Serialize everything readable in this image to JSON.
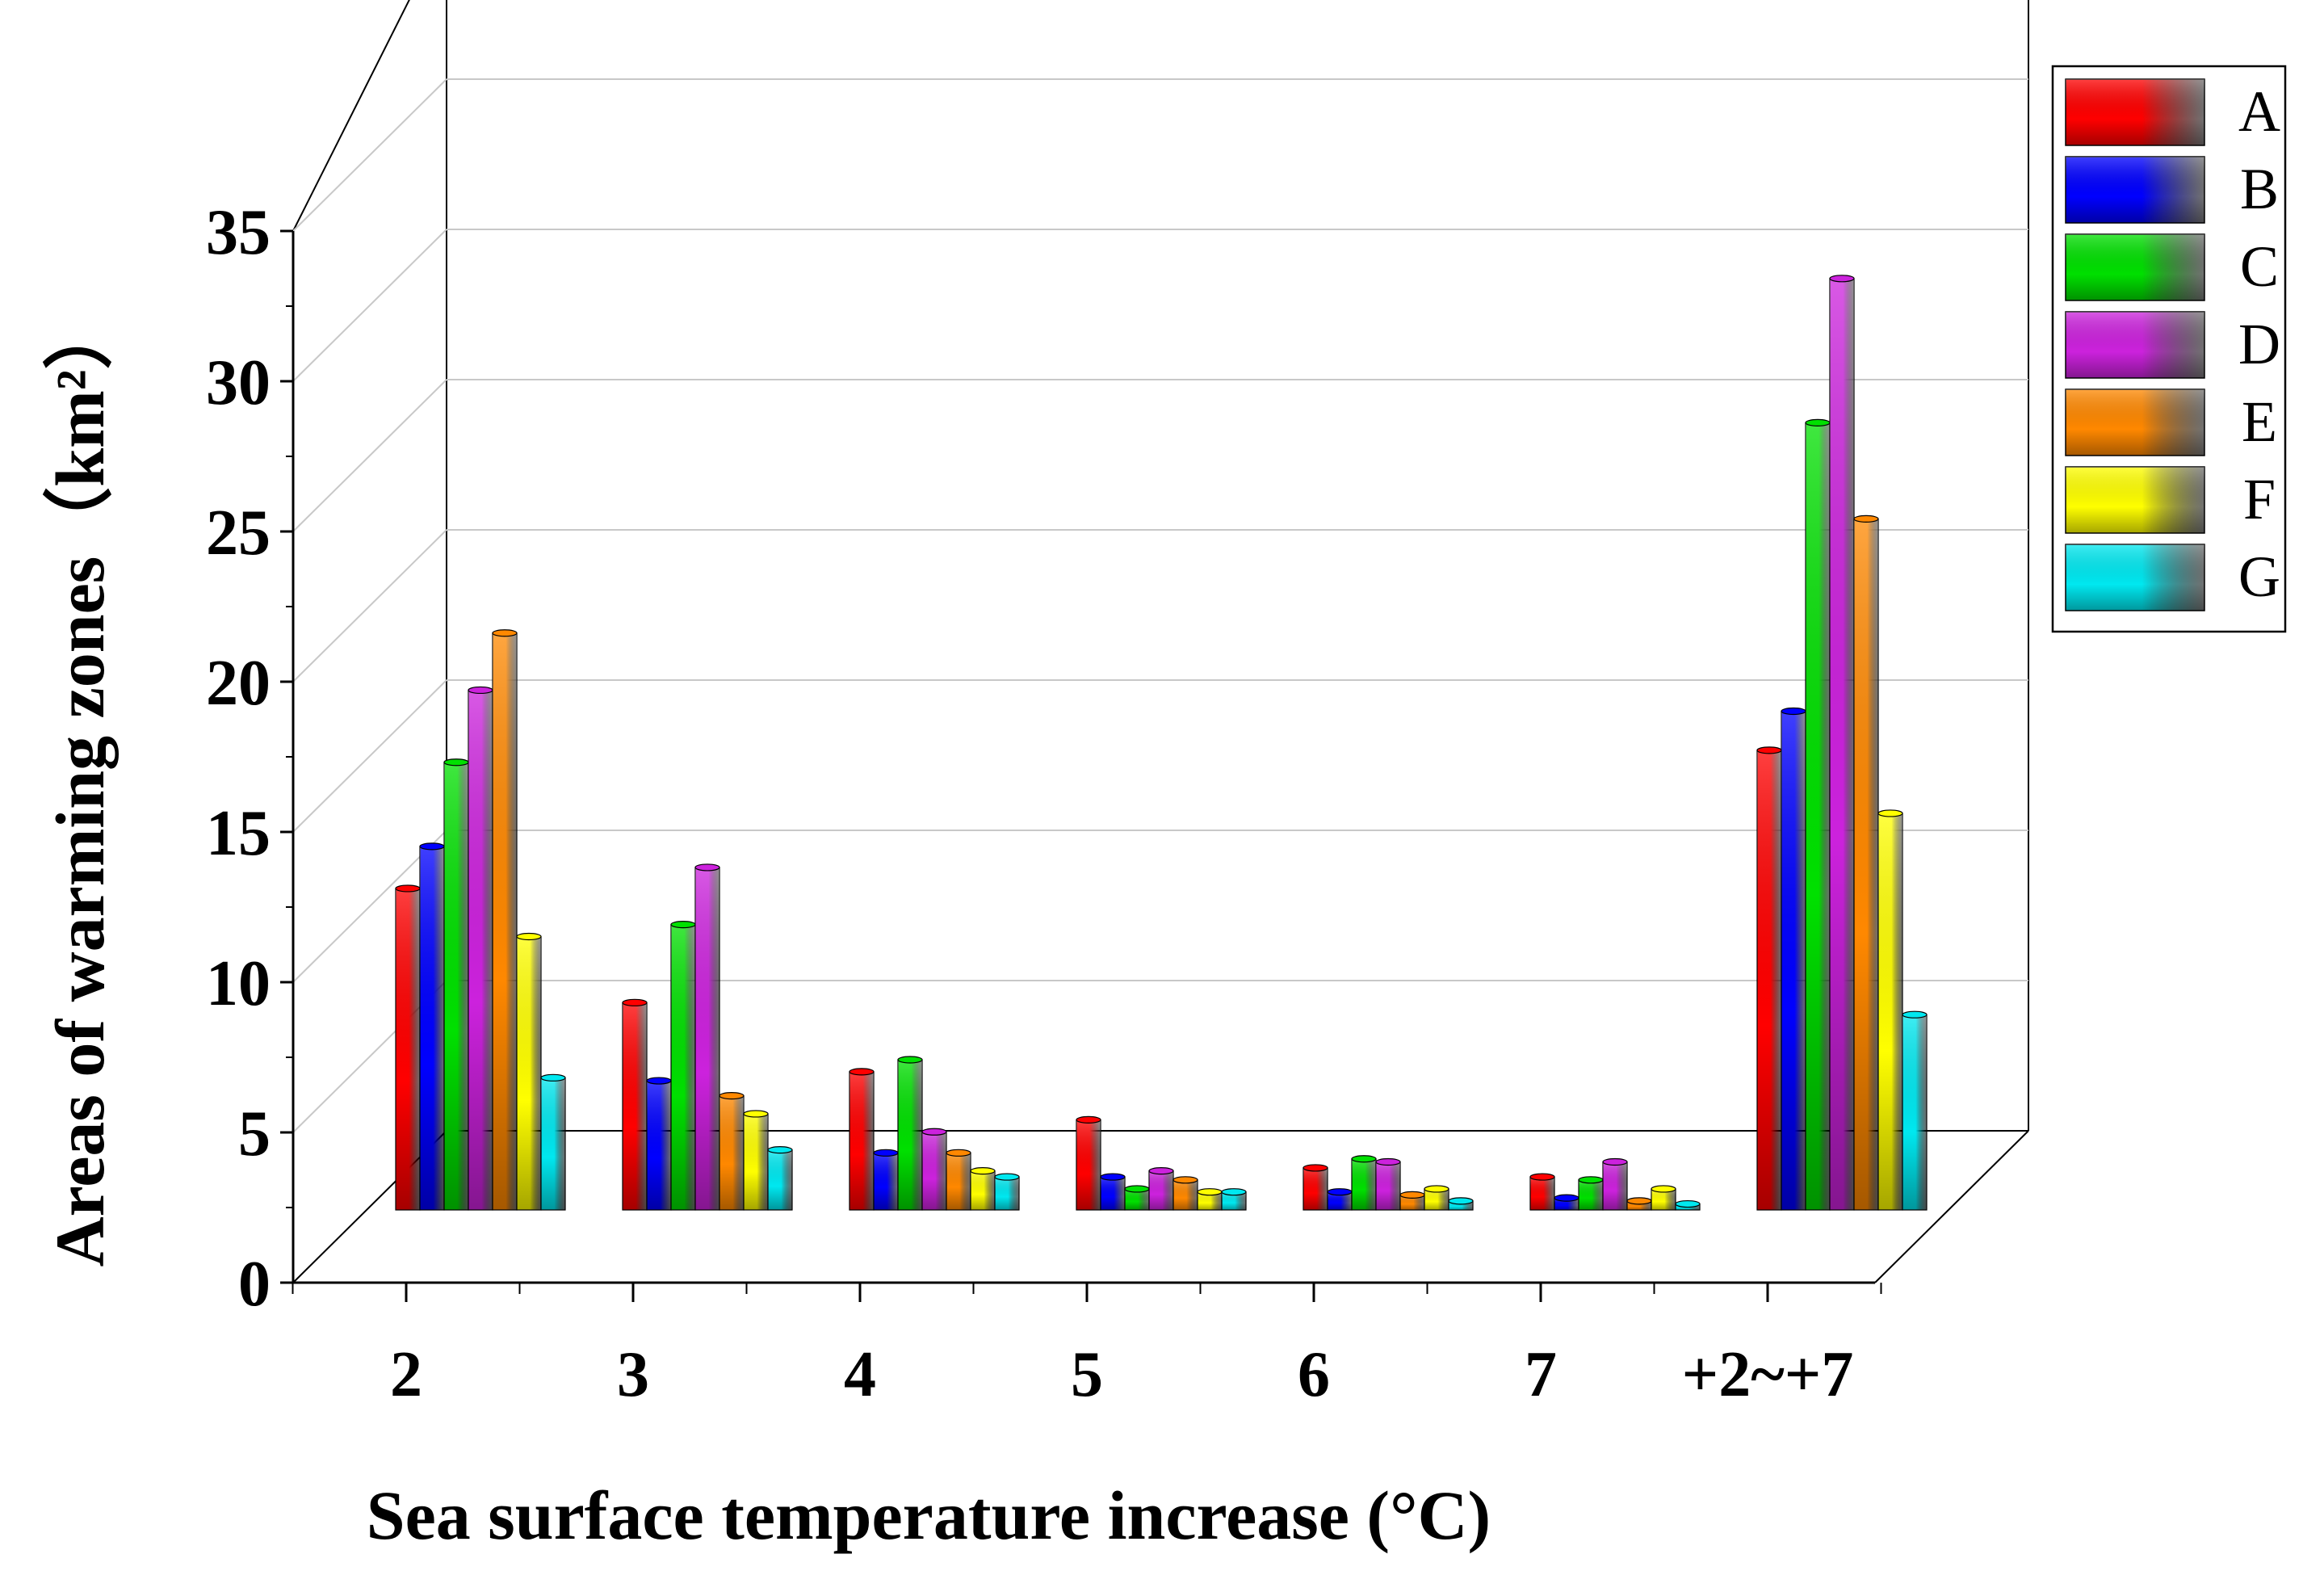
{
  "chart_data": {
    "type": "bar",
    "style": "3d-grouped",
    "categories": [
      "2",
      "3",
      "4",
      "5",
      "6",
      "7",
      "+2~+7"
    ],
    "series": [
      {
        "name": "A",
        "color": "#ff0000",
        "values": [
          10.7,
          6.9,
          4.6,
          3.0,
          1.4,
          1.1,
          15.3
        ]
      },
      {
        "name": "B",
        "color": "#0000ff",
        "values": [
          12.1,
          4.3,
          1.9,
          1.1,
          0.6,
          0.4,
          16.6
        ]
      },
      {
        "name": "C",
        "color": "#00e000",
        "values": [
          14.9,
          9.5,
          5.0,
          0.7,
          1.7,
          1.0,
          26.2
        ]
      },
      {
        "name": "D",
        "color": "#cc22dd",
        "values": [
          17.3,
          11.4,
          2.6,
          1.3,
          1.6,
          1.6,
          31.0
        ]
      },
      {
        "name": "E",
        "color": "#ff8800",
        "values": [
          19.2,
          3.8,
          1.9,
          1.0,
          0.5,
          0.3,
          23.0
        ]
      },
      {
        "name": "F",
        "color": "#ffff00",
        "values": [
          9.1,
          3.2,
          1.3,
          0.6,
          0.7,
          0.7,
          13.2
        ]
      },
      {
        "name": "G",
        "color": "#00e8f0",
        "values": [
          4.4,
          2.0,
          1.1,
          0.6,
          0.3,
          0.2,
          6.5
        ]
      }
    ],
    "xlabel": "Sea surface temperature increase (°C)",
    "ylabel": "Areas of warming zones（km²）",
    "ylim": [
      0,
      35
    ],
    "yticks": [
      "0",
      "5",
      "10",
      "15",
      "20",
      "25",
      "30",
      "35"
    ],
    "grid": true,
    "legend_position": "top-right"
  }
}
